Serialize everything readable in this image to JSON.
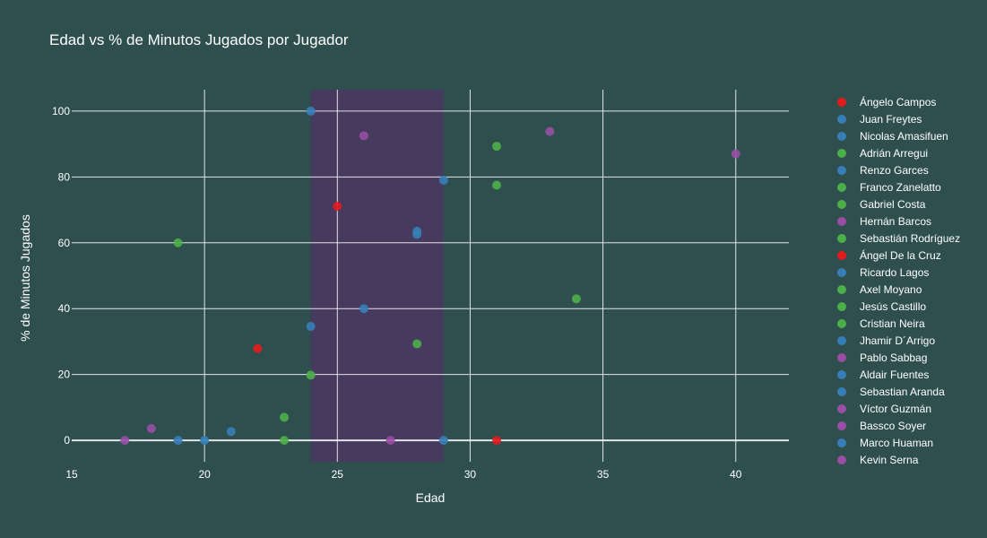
{
  "chart_data": {
    "type": "scatter",
    "title": "Edad vs % de Minutos Jugados por Jugador",
    "xlabel": "Edad",
    "ylabel": "% de Minutos Jugados",
    "xlim": [
      15,
      42
    ],
    "ylim": [
      -6.5,
      106.5
    ],
    "xticks": [
      15,
      20,
      25,
      30,
      35,
      40
    ],
    "yticks": [
      0,
      20,
      40,
      60,
      80,
      100
    ],
    "grid": true,
    "legend_position": "right",
    "highlight_band": {
      "x_range": [
        24,
        29
      ],
      "color": "#5a2a6e",
      "opacity": 0.55
    },
    "colors": {
      "background": "#2f4f4f",
      "grid": "#ffffff",
      "text": "#ffffff"
    },
    "series": [
      {
        "name": "Ángelo Campos",
        "color": "#e41a1c",
        "points": [
          [
            31,
            0
          ]
        ]
      },
      {
        "name": "Juan Freytes",
        "color": "#377eb8",
        "points": [
          [
            28,
            63.5
          ]
        ]
      },
      {
        "name": "Nicolas Amasifuen",
        "color": "#377eb8",
        "points": [
          [
            21,
            2.7
          ]
        ]
      },
      {
        "name": "Adrián Arregui",
        "color": "#4daf4a",
        "points": [
          [
            31,
            89.3
          ]
        ]
      },
      {
        "name": "Renzo Garces",
        "color": "#377eb8",
        "points": [
          [
            29,
            79
          ]
        ]
      },
      {
        "name": "Franco Zanelatto",
        "color": "#4daf4a",
        "points": [
          [
            34,
            43
          ]
        ]
      },
      {
        "name": "Gabriel Costa",
        "color": "#4daf4a",
        "points": [
          [
            31,
            77.5
          ]
        ]
      },
      {
        "name": "Hernán Barcos",
        "color": "#984ea3",
        "points": [
          [
            40,
            87
          ]
        ]
      },
      {
        "name": "Sebastián Rodríguez",
        "color": "#4daf4a",
        "points": [
          [
            28,
            29.3
          ]
        ]
      },
      {
        "name": "Ángel De la Cruz",
        "color": "#e41a1c",
        "points": [
          [
            22,
            27.9
          ],
          [
            25,
            71.1
          ]
        ]
      },
      {
        "name": "Ricardo Lagos",
        "color": "#377eb8",
        "points": [
          [
            26,
            40
          ]
        ]
      },
      {
        "name": "Axel Moyano",
        "color": "#4daf4a",
        "points": [
          [
            23,
            7
          ]
        ]
      },
      {
        "name": "Jesús Castillo",
        "color": "#4daf4a",
        "points": [
          [
            24,
            19.8
          ]
        ]
      },
      {
        "name": "Cristian Neira",
        "color": "#4daf4a",
        "points": [
          [
            19,
            60
          ],
          [
            23,
            0
          ]
        ]
      },
      {
        "name": "Jhamir D´Arrigo",
        "color": "#377eb8",
        "points": [
          [
            24,
            34.6
          ],
          [
            28,
            62.6
          ]
        ]
      },
      {
        "name": "Pablo Sabbag",
        "color": "#984ea3",
        "points": [
          [
            26,
            92.5
          ]
        ]
      },
      {
        "name": "Aldair Fuentes",
        "color": "#377eb8",
        "points": [
          [
            24,
            100
          ],
          [
            29,
            0
          ]
        ]
      },
      {
        "name": "Sebastian Aranda",
        "color": "#377eb8",
        "points": [
          [
            19,
            0
          ],
          [
            20,
            0
          ]
        ]
      },
      {
        "name": "Víctor Guzmán",
        "color": "#984ea3",
        "points": [
          [
            33,
            93.8
          ]
        ]
      },
      {
        "name": "Bassco Soyer",
        "color": "#984ea3",
        "points": [
          [
            17,
            0
          ],
          [
            27,
            0
          ]
        ]
      },
      {
        "name": "Marco Huaman",
        "color": "#377eb8",
        "points": []
      },
      {
        "name": "Kevin Serna",
        "color": "#984ea3",
        "points": [
          [
            18,
            3.6
          ]
        ]
      }
    ]
  }
}
